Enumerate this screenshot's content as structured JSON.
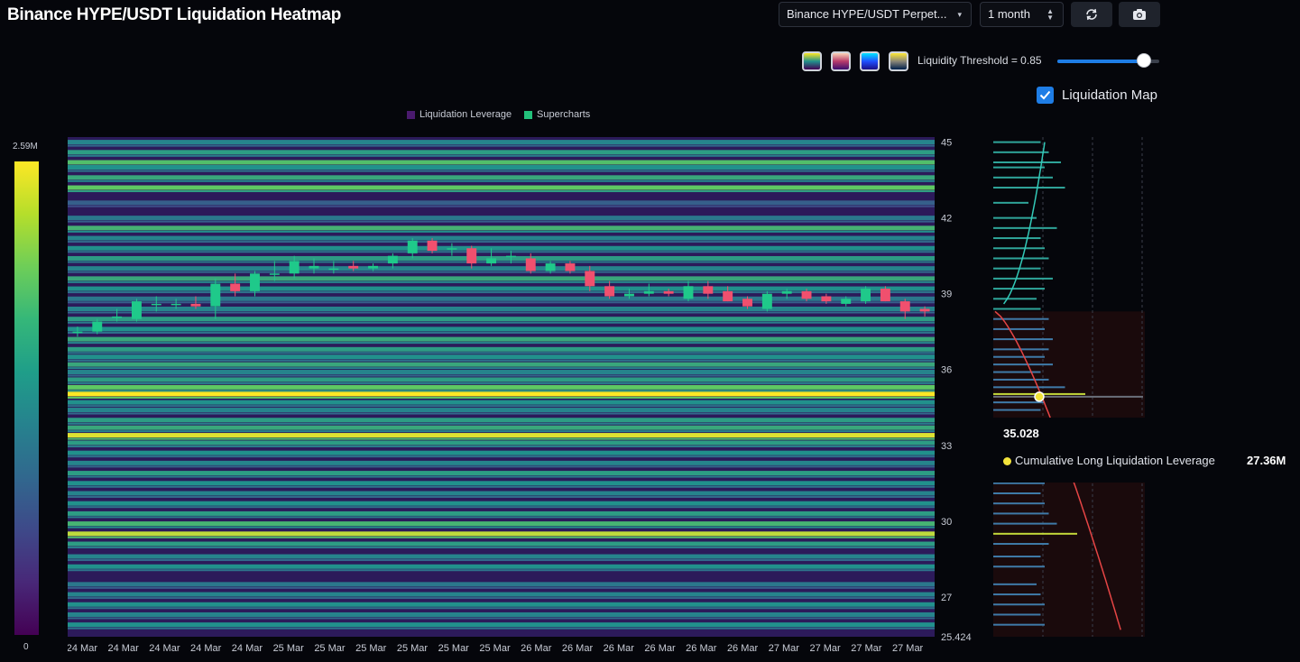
{
  "header": {
    "title": "Binance HYPE/USDT Liquidation Heatmap",
    "pair_select_value": "Binance HYPE/USDT Perpet...",
    "range_select_value": "1 month"
  },
  "toolbar": {
    "refresh_icon": "refresh-icon",
    "camera_icon": "camera-icon",
    "color_schemes": [
      {
        "name": "viridis",
        "top": "#fde725",
        "mid": "#21918c",
        "bottom": "#440154"
      },
      {
        "name": "magma",
        "top": "#fbd3b7",
        "mid": "#b83b6b",
        "bottom": "#3b0f70"
      },
      {
        "name": "blue",
        "top": "#00e5ff",
        "mid": "#1f4fff",
        "bottom": "#1a0f8a"
      },
      {
        "name": "cividis",
        "top": "#fde737",
        "mid": "#8a8678",
        "bottom": "#00204c"
      }
    ],
    "threshold_label": "Liquidity Threshold = 0.85",
    "threshold_value": 0.85,
    "liquidation_map_label": "Liquidation Map",
    "liquidation_map_checked": true
  },
  "legend": {
    "items": [
      {
        "label": "Liquidation Leverage",
        "color": "#4a1a6e"
      },
      {
        "label": "Supercharts",
        "color": "#22c07a"
      }
    ]
  },
  "colorbar": {
    "max_label": "2.59M",
    "min_label": "0"
  },
  "chart_data": {
    "type": "heatmap",
    "y_ticks": [
      "45",
      "42",
      "39",
      "36",
      "33",
      "30",
      "27",
      "25.424"
    ],
    "ylim": [
      25.424,
      45.2
    ],
    "x_ticks": [
      "24 Mar",
      "24 Mar",
      "24 Mar",
      "24 Mar",
      "24 Mar",
      "25 Mar",
      "25 Mar",
      "25 Mar",
      "25 Mar",
      "25 Mar",
      "25 Mar",
      "26 Mar",
      "26 Mar",
      "26 Mar",
      "26 Mar",
      "26 Mar",
      "26 Mar",
      "27 Mar",
      "27 Mar",
      "27 Mar",
      "27 Mar"
    ],
    "colors": {
      "up": "#1fc98a",
      "down": "#f0506e"
    },
    "candles": [
      {
        "o": 37.5,
        "h": 37.7,
        "l": 37.3,
        "c": 37.5
      },
      {
        "o": 37.5,
        "h": 38.0,
        "l": 37.4,
        "c": 37.9
      },
      {
        "o": 38.1,
        "h": 38.4,
        "l": 37.9,
        "c": 38.1
      },
      {
        "o": 38.0,
        "h": 38.8,
        "l": 37.9,
        "c": 38.7
      },
      {
        "o": 38.6,
        "h": 38.9,
        "l": 38.3,
        "c": 38.6
      },
      {
        "o": 38.6,
        "h": 38.8,
        "l": 38.4,
        "c": 38.6
      },
      {
        "o": 38.6,
        "h": 38.9,
        "l": 38.4,
        "c": 38.5
      },
      {
        "o": 38.5,
        "h": 39.6,
        "l": 38.0,
        "c": 39.4
      },
      {
        "o": 39.4,
        "h": 39.8,
        "l": 38.9,
        "c": 39.1
      },
      {
        "o": 39.1,
        "h": 39.9,
        "l": 38.9,
        "c": 39.8
      },
      {
        "o": 39.8,
        "h": 40.3,
        "l": 39.5,
        "c": 39.8
      },
      {
        "o": 39.8,
        "h": 40.5,
        "l": 39.6,
        "c": 40.3
      },
      {
        "o": 40.0,
        "h": 40.4,
        "l": 39.8,
        "c": 40.1
      },
      {
        "o": 40.0,
        "h": 40.3,
        "l": 39.8,
        "c": 40.0
      },
      {
        "o": 40.1,
        "h": 40.3,
        "l": 39.9,
        "c": 40.0
      },
      {
        "o": 40.0,
        "h": 40.2,
        "l": 39.9,
        "c": 40.1
      },
      {
        "o": 40.2,
        "h": 40.6,
        "l": 40.0,
        "c": 40.5
      },
      {
        "o": 40.6,
        "h": 41.2,
        "l": 40.4,
        "c": 41.1
      },
      {
        "o": 41.1,
        "h": 41.2,
        "l": 40.6,
        "c": 40.7
      },
      {
        "o": 40.8,
        "h": 41.0,
        "l": 40.5,
        "c": 40.8
      },
      {
        "o": 40.8,
        "h": 40.9,
        "l": 40.0,
        "c": 40.2
      },
      {
        "o": 40.2,
        "h": 40.8,
        "l": 40.1,
        "c": 40.4
      },
      {
        "o": 40.5,
        "h": 40.7,
        "l": 40.2,
        "c": 40.5
      },
      {
        "o": 40.4,
        "h": 40.6,
        "l": 39.8,
        "c": 39.9
      },
      {
        "o": 39.9,
        "h": 40.3,
        "l": 39.8,
        "c": 40.2
      },
      {
        "o": 40.2,
        "h": 40.3,
        "l": 39.8,
        "c": 39.9
      },
      {
        "o": 39.9,
        "h": 40.1,
        "l": 39.1,
        "c": 39.3
      },
      {
        "o": 39.3,
        "h": 39.5,
        "l": 38.8,
        "c": 38.9
      },
      {
        "o": 38.9,
        "h": 39.2,
        "l": 38.8,
        "c": 39.0
      },
      {
        "o": 39.0,
        "h": 39.4,
        "l": 38.9,
        "c": 39.1
      },
      {
        "o": 39.1,
        "h": 39.2,
        "l": 38.9,
        "c": 39.0
      },
      {
        "o": 38.8,
        "h": 39.5,
        "l": 38.7,
        "c": 39.3
      },
      {
        "o": 39.3,
        "h": 39.5,
        "l": 38.8,
        "c": 39.0
      },
      {
        "o": 39.1,
        "h": 39.3,
        "l": 38.7,
        "c": 38.7
      },
      {
        "o": 38.8,
        "h": 38.9,
        "l": 38.4,
        "c": 38.5
      },
      {
        "o": 38.4,
        "h": 39.1,
        "l": 38.3,
        "c": 39.0
      },
      {
        "o": 39.0,
        "h": 39.2,
        "l": 38.8,
        "c": 39.1
      },
      {
        "o": 39.1,
        "h": 39.2,
        "l": 38.7,
        "c": 38.8
      },
      {
        "o": 38.9,
        "h": 39.0,
        "l": 38.6,
        "c": 38.7
      },
      {
        "o": 38.6,
        "h": 38.9,
        "l": 38.5,
        "c": 38.8
      },
      {
        "o": 38.7,
        "h": 39.3,
        "l": 38.6,
        "c": 39.2
      },
      {
        "o": 39.2,
        "h": 39.3,
        "l": 38.7,
        "c": 38.7
      },
      {
        "o": 38.7,
        "h": 38.8,
        "l": 38.0,
        "c": 38.3
      },
      {
        "o": 38.4,
        "h": 38.5,
        "l": 38.1,
        "c": 38.3
      }
    ],
    "levels": [
      {
        "p": 45.0,
        "v": 0.45
      },
      {
        "p": 44.6,
        "v": 0.55
      },
      {
        "p": 44.2,
        "v": 0.7
      },
      {
        "p": 44.0,
        "v": 0.5
      },
      {
        "p": 43.6,
        "v": 0.6
      },
      {
        "p": 43.2,
        "v": 0.75
      },
      {
        "p": 42.6,
        "v": 0.3
      },
      {
        "p": 42.0,
        "v": 0.4
      },
      {
        "p": 41.6,
        "v": 0.65
      },
      {
        "p": 41.2,
        "v": 0.45
      },
      {
        "p": 40.8,
        "v": 0.5
      },
      {
        "p": 40.4,
        "v": 0.55
      },
      {
        "p": 40.0,
        "v": 0.45
      },
      {
        "p": 39.6,
        "v": 0.6
      },
      {
        "p": 39.2,
        "v": 0.5
      },
      {
        "p": 38.8,
        "v": 0.4
      },
      {
        "p": 38.4,
        "v": 0.45
      },
      {
        "p": 38.0,
        "v": 0.55
      },
      {
        "p": 37.6,
        "v": 0.5
      },
      {
        "p": 37.2,
        "v": 0.6
      },
      {
        "p": 36.8,
        "v": 0.55
      },
      {
        "p": 36.5,
        "v": 0.5
      },
      {
        "p": 36.2,
        "v": 0.6
      },
      {
        "p": 35.9,
        "v": 0.45
      },
      {
        "p": 35.6,
        "v": 0.55
      },
      {
        "p": 35.3,
        "v": 0.75
      },
      {
        "p": 35.03,
        "v": 1.0
      },
      {
        "p": 34.7,
        "v": 0.5
      },
      {
        "p": 34.4,
        "v": 0.45
      },
      {
        "p": 34.0,
        "v": 0.55
      },
      {
        "p": 33.7,
        "v": 0.6
      },
      {
        "p": 33.4,
        "v": 0.95
      },
      {
        "p": 33.1,
        "v": 0.55
      },
      {
        "p": 32.7,
        "v": 0.5
      },
      {
        "p": 32.3,
        "v": 0.45
      },
      {
        "p": 31.9,
        "v": 0.55
      },
      {
        "p": 31.5,
        "v": 0.5
      },
      {
        "p": 31.1,
        "v": 0.45
      },
      {
        "p": 30.7,
        "v": 0.5
      },
      {
        "p": 30.3,
        "v": 0.55
      },
      {
        "p": 29.9,
        "v": 0.65
      },
      {
        "p": 29.5,
        "v": 0.9
      },
      {
        "p": 29.1,
        "v": 0.55
      },
      {
        "p": 28.6,
        "v": 0.45
      },
      {
        "p": 28.2,
        "v": 0.5
      },
      {
        "p": 27.5,
        "v": 0.4
      },
      {
        "p": 27.1,
        "v": 0.45
      },
      {
        "p": 26.7,
        "v": 0.5
      },
      {
        "p": 26.3,
        "v": 0.45
      },
      {
        "p": 25.9,
        "v": 0.5
      }
    ]
  },
  "depth": {
    "tooltip_price": "35.028",
    "tooltip_series": "Cumulative Long Liquidation Leverage",
    "tooltip_value": "27.36M"
  }
}
